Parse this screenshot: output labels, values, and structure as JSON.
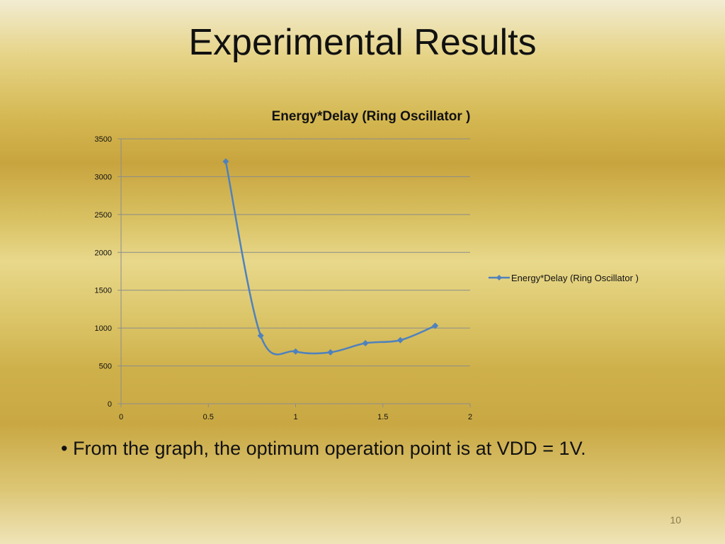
{
  "slide": {
    "title": "Experimental Results",
    "bullet_marker": "•",
    "bullet_text": "From the graph, the optimum operation point is at VDD = 1V.",
    "page_number": "10"
  },
  "colors": {
    "series": "#4f81bd",
    "gridline": "#8c8c8c",
    "axis": "#8c8c8c",
    "text": "#111111"
  },
  "chart_data": {
    "type": "scatter",
    "title": "Energy*Delay (Ring Oscillator )",
    "xlabel": "",
    "ylabel": "",
    "xlim": [
      0,
      2
    ],
    "ylim": [
      0,
      3500
    ],
    "x_ticks": [
      "0",
      "0.5",
      "1",
      "1.5",
      "2"
    ],
    "y_ticks": [
      "0",
      "500",
      "1000",
      "1500",
      "2000",
      "2500",
      "3000",
      "3500"
    ],
    "grid": true,
    "smooth": true,
    "legend_position": "right",
    "series": [
      {
        "name": "Energy*Delay (Ring Oscillator )",
        "x": [
          0.6,
          0.8,
          1.0,
          1.2,
          1.4,
          1.6,
          1.8
        ],
        "y": [
          3200,
          900,
          690,
          680,
          800,
          840,
          1030
        ]
      }
    ]
  }
}
